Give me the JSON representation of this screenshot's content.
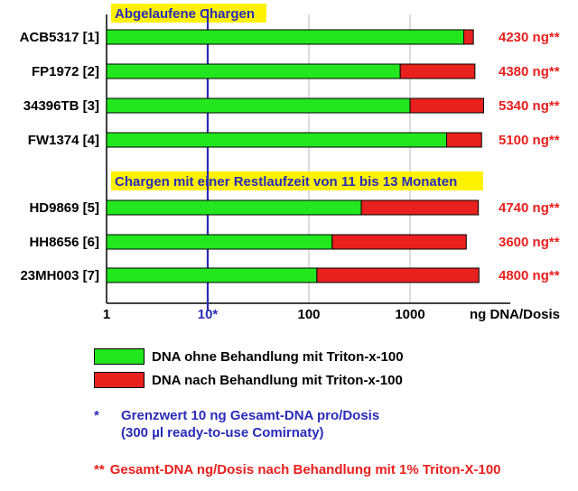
{
  "chart_data": {
    "type": "bar",
    "orientation": "horizontal",
    "x_scale": "log",
    "xlim": [
      1,
      5000
    ],
    "xlabel": "ng DNA/Dosis",
    "x_ticks": [
      "1",
      "10*",
      "100",
      "1000"
    ],
    "threshold": 10,
    "sections": [
      {
        "title": "Abgelaufene Chargen",
        "rows": [
          0,
          1,
          2,
          3
        ]
      },
      {
        "title": "Chargen mit einer Restlaufzeit von 11 bis 13 Monaten",
        "rows": [
          4,
          5,
          6
        ]
      }
    ],
    "categories": [
      "ACB5317 [1]",
      "FP1972 [2]",
      "34396TB [3]",
      "FW1374 [4]",
      "HD9869 [5]",
      "HH8656 [6]",
      "23MH003 [7]"
    ],
    "series": [
      {
        "name": "DNA ohne Behandlung mit Triton-x-100",
        "color": "#22e61e",
        "values": [
          3400,
          800,
          1000,
          2300,
          330,
          170,
          120
        ]
      },
      {
        "name": "DNA nach Behandlung mit Triton-x-100",
        "color": "#e8201e",
        "values": [
          4230,
          4380,
          5340,
          5100,
          4740,
          3600,
          4800
        ]
      }
    ],
    "value_labels": [
      "4230 ng**",
      "4380 ng**",
      "5340 ng**",
      "5100 ng**",
      "4740 ng**",
      "3600 ng**",
      "4800 ng**"
    ]
  },
  "notes": {
    "threshold_mark": "*",
    "threshold_line1": "Grenzwert 10 ng Gesamt-DNA pro/Dosis",
    "threshold_line2": "(300 µl ready-to-use Comirnaty)",
    "triton_mark": "**",
    "triton_text": "Gesamt-DNA ng/Dosis nach Behandlung mit 1% Triton-X-100"
  },
  "colors": {
    "threshold_line": "#2a2cb8",
    "section_bg": "#fff200",
    "notes_blue": "#2a2cb8",
    "notes_red": "#e8201e"
  }
}
